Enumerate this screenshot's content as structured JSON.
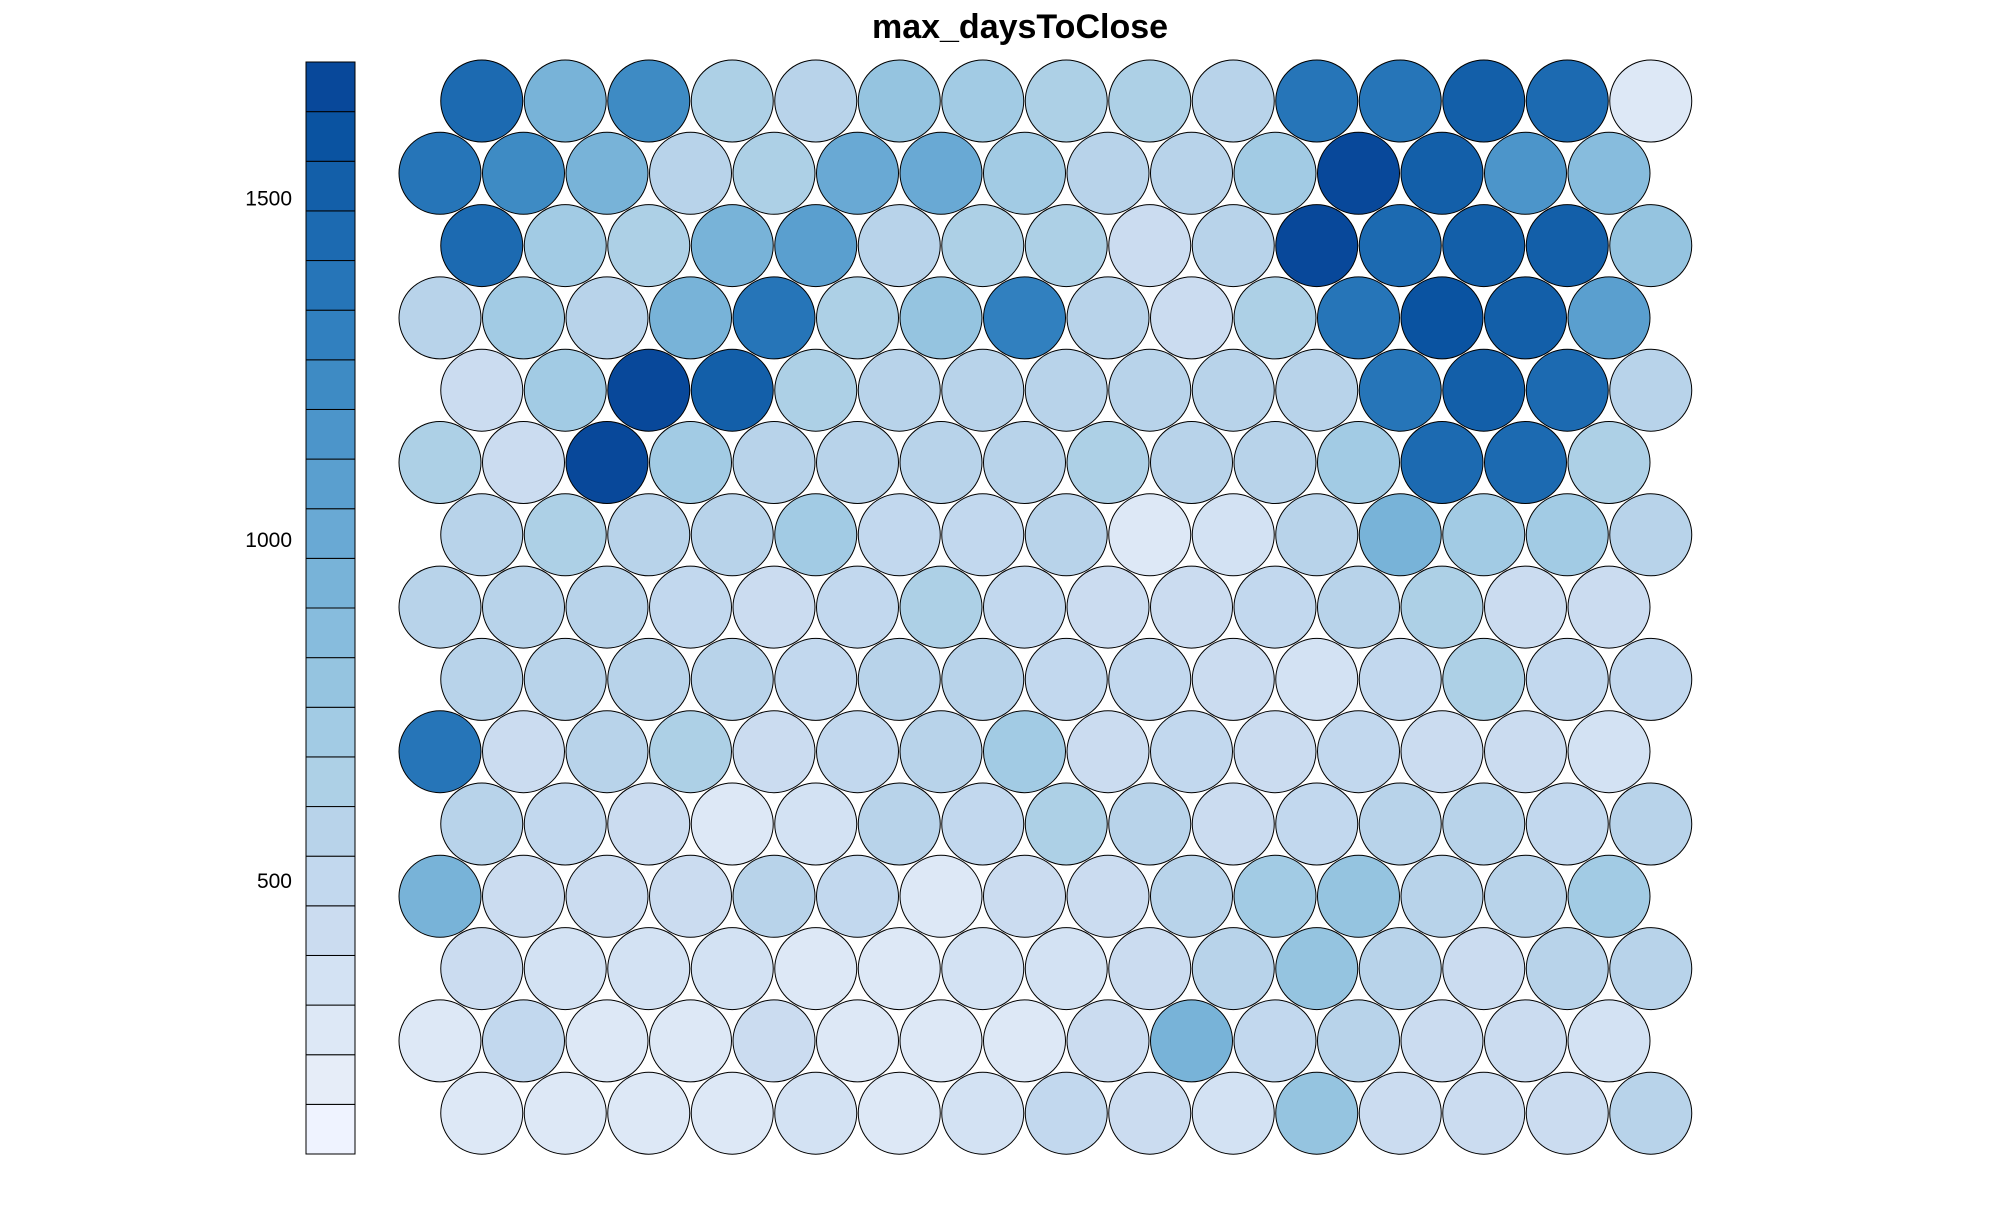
{
  "chart_data": {
    "type": "heatmap",
    "subtype": "som-hexagonal-property-map",
    "title": "max_daysToClose",
    "grid": {
      "columns": 15,
      "rows": 15,
      "topology": "hexagonal"
    },
    "palette": [
      "#eff3ff",
      "#e6edf8",
      "#dde8f6",
      "#d3e2f3",
      "#cbdcf0",
      "#c2d8ee",
      "#b8d3ea",
      "#add0e6",
      "#a2cbe4",
      "#95c4e0",
      "#87bcdd",
      "#78b3d8",
      "#69a9d4",
      "#5a9fcf",
      "#4c95ca",
      "#3e8bc4",
      "#3180bf",
      "#2675b8",
      "#1c6ab1",
      "#135fa9",
      "#0a53a1",
      "#08489a"
    ],
    "colorbar": {
      "min": 100,
      "max": 1700,
      "ticks": [
        500,
        1000,
        1500
      ]
    },
    "rows_top_to_bottom": [
      [
        1450,
        950,
        1250,
        650,
        600,
        800,
        750,
        650,
        650,
        550,
        1350,
        1350,
        1550,
        1450,
        250
      ],
      [
        1350,
        1250,
        950,
        550,
        650,
        1000,
        1000,
        750,
        550,
        600,
        700,
        1650,
        1550,
        1150,
        850
      ],
      [
        1450,
        700,
        650,
        950,
        1050,
        600,
        650,
        650,
        450,
        600,
        1700,
        1450,
        1550,
        1550,
        800
      ],
      [
        600,
        700,
        550,
        950,
        1400,
        650,
        800,
        1300,
        550,
        450,
        650,
        1400,
        1600,
        1500,
        1050
      ],
      [
        450,
        700,
        1700,
        1550,
        650,
        600,
        550,
        550,
        550,
        550,
        550,
        1350,
        1550,
        1450,
        550
      ],
      [
        650,
        450,
        1700,
        700,
        600,
        550,
        550,
        550,
        650,
        600,
        550,
        700,
        1450,
        1450,
        650
      ],
      [
        550,
        650,
        600,
        600,
        750,
        500,
        500,
        600,
        250,
        350,
        550,
        900,
        700,
        700,
        600
      ],
      [
        600,
        550,
        550,
        500,
        400,
        500,
        650,
        500,
        450,
        400,
        500,
        600,
        650,
        450,
        450
      ],
      [
        600,
        550,
        600,
        550,
        500,
        550,
        600,
        500,
        500,
        450,
        350,
        500,
        650,
        500,
        500
      ],
      [
        1350,
        450,
        550,
        650,
        400,
        500,
        600,
        700,
        450,
        500,
        400,
        500,
        450,
        450,
        350
      ],
      [
        600,
        500,
        400,
        250,
        350,
        550,
        500,
        650,
        600,
        400,
        500,
        550,
        600,
        500,
        550
      ],
      [
        950,
        450,
        400,
        450,
        550,
        500,
        300,
        400,
        450,
        550,
        700,
        800,
        550,
        550,
        700
      ],
      [
        450,
        350,
        350,
        350,
        250,
        250,
        350,
        350,
        400,
        550,
        800,
        550,
        450,
        600,
        550
      ],
      [
        250,
        500,
        250,
        250,
        450,
        250,
        250,
        250,
        450,
        900,
        500,
        550,
        450,
        450,
        350
      ],
      [
        250,
        250,
        250,
        250,
        350,
        250,
        350,
        500,
        450,
        350,
        800,
        450,
        450,
        450,
        600
      ]
    ]
  }
}
